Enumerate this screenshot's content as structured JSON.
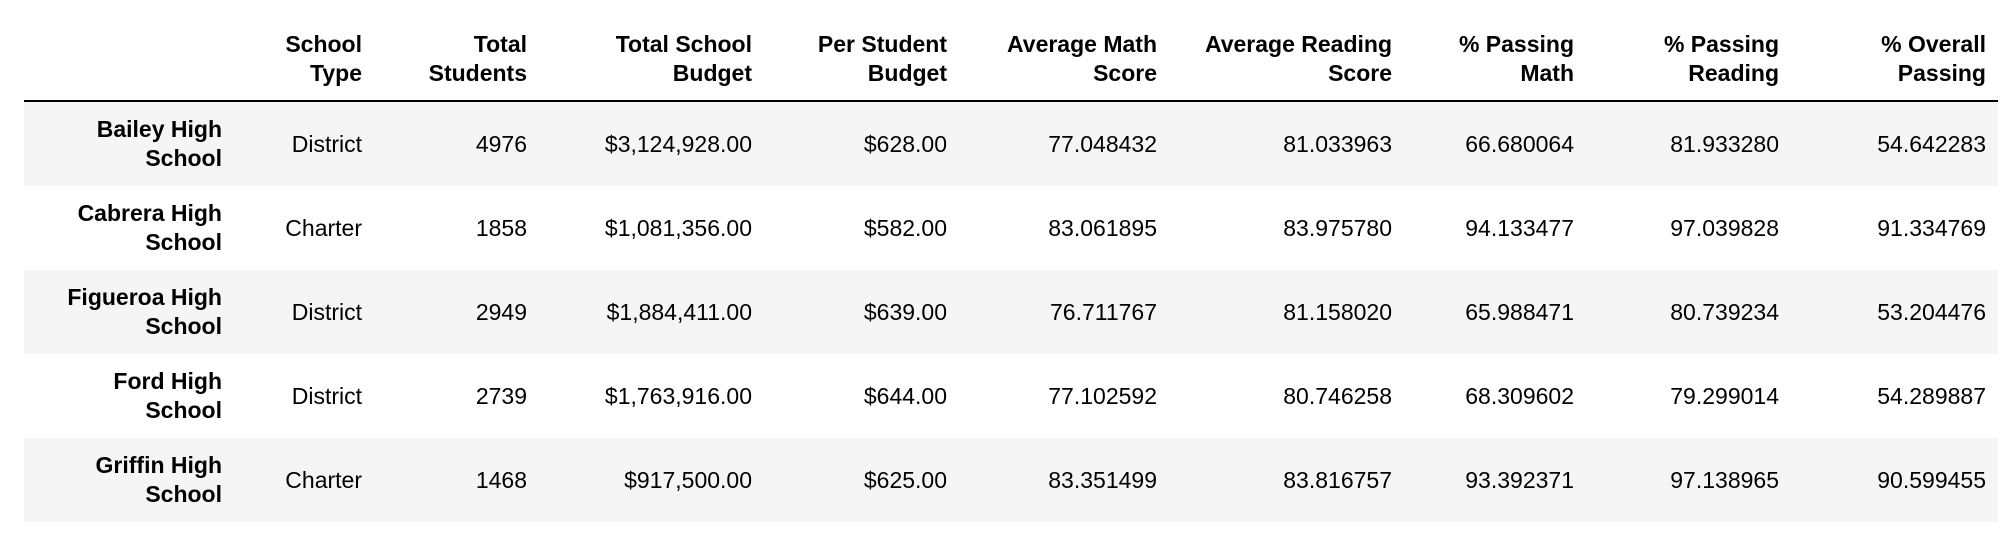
{
  "table": {
    "columns": [
      "",
      "School Type",
      "Total Students",
      "Total School Budget",
      "Per Student Budget",
      "Average Math Score",
      "Average Reading Score",
      "% Passing Math",
      "% Passing Reading",
      "% Overall Passing"
    ],
    "header_lines": [
      [
        "",
        ""
      ],
      [
        "School",
        "Type"
      ],
      [
        "Total",
        "Students"
      ],
      [
        "Total School",
        "Budget"
      ],
      [
        "Per Student",
        "Budget"
      ],
      [
        "Average Math",
        "Score"
      ],
      [
        "Average Reading",
        "Score"
      ],
      [
        "% Passing",
        "Math"
      ],
      [
        "% Passing",
        "Reading"
      ],
      [
        "% Overall",
        "Passing"
      ]
    ],
    "rows": [
      {
        "index_lines": [
          "Bailey High",
          "School"
        ],
        "index": "Bailey High School",
        "cells": [
          "District",
          "4976",
          "$3,124,928.00",
          "$628.00",
          "77.048432",
          "81.033963",
          "66.680064",
          "81.933280",
          "54.642283"
        ]
      },
      {
        "index_lines": [
          "Cabrera High",
          "School"
        ],
        "index": "Cabrera High School",
        "cells": [
          "Charter",
          "1858",
          "$1,081,356.00",
          "$582.00",
          "83.061895",
          "83.975780",
          "94.133477",
          "97.039828",
          "91.334769"
        ]
      },
      {
        "index_lines": [
          "Figueroa High",
          "School"
        ],
        "index": "Figueroa High School",
        "cells": [
          "District",
          "2949",
          "$1,884,411.00",
          "$639.00",
          "76.711767",
          "81.158020",
          "65.988471",
          "80.739234",
          "53.204476"
        ]
      },
      {
        "index_lines": [
          "Ford High",
          "School"
        ],
        "index": "Ford High School",
        "cells": [
          "District",
          "2739",
          "$1,763,916.00",
          "$644.00",
          "77.102592",
          "80.746258",
          "68.309602",
          "79.299014",
          "54.289887"
        ]
      },
      {
        "index_lines": [
          "Griffin High",
          "School"
        ],
        "index": "Griffin High School",
        "cells": [
          "Charter",
          "1468",
          "$917,500.00",
          "$625.00",
          "83.351499",
          "83.816757",
          "93.392371",
          "97.138965",
          "90.599455"
        ]
      }
    ]
  }
}
